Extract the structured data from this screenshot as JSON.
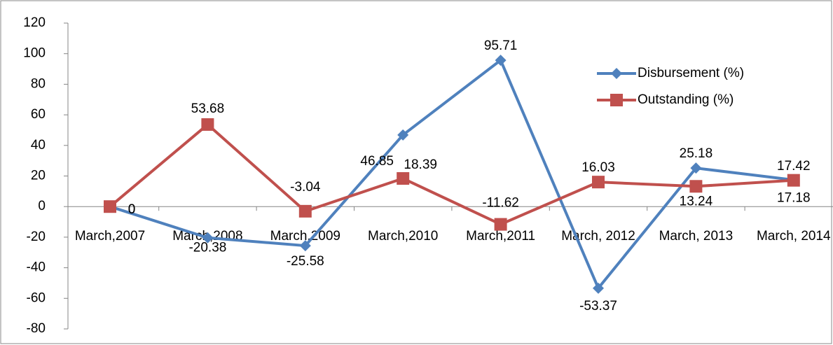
{
  "chart_data": {
    "type": "line",
    "categories": [
      "March,2007",
      "March,2008",
      "March,2009",
      "March,2010",
      "March,2011",
      "March, 2012",
      "March, 2013",
      "March, 2014"
    ],
    "series": [
      {
        "name": "Disbursement (%)",
        "color": "#4f81bd",
        "marker": "diamond",
        "values": [
          0,
          -20.38,
          -25.58,
          46.85,
          95.71,
          -53.37,
          25.18,
          17.42
        ]
      },
      {
        "name": "Outstanding (%)",
        "color": "#c0504d",
        "marker": "square",
        "values": [
          0,
          53.68,
          -3.04,
          18.39,
          -11.62,
          16.03,
          13.24,
          17.18
        ]
      }
    ],
    "ylim": [
      -80,
      120
    ],
    "yticks": [
      -80,
      -60,
      -40,
      -20,
      0,
      20,
      40,
      60,
      80,
      100,
      120
    ],
    "grid": false,
    "legend": "top-right"
  }
}
